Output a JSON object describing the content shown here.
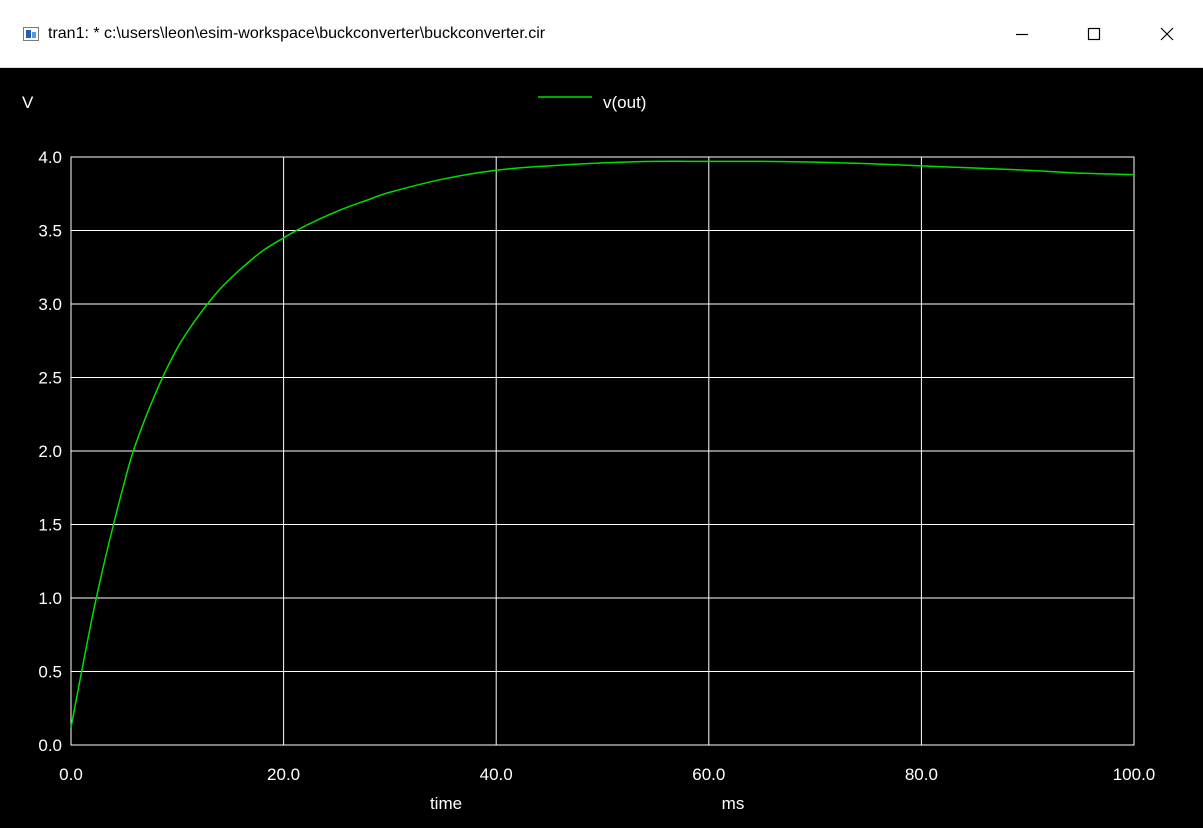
{
  "window": {
    "title": "tran1: * c:\\users\\leon\\esim-workspace\\buckconverter\\buckconverter.cir",
    "icon": "app-icon",
    "controls": [
      "minimize-icon",
      "maximize-icon",
      "close-icon"
    ]
  },
  "colors": {
    "background": "#000000",
    "grid": "#ffffff",
    "trace": "#00dd00"
  },
  "chart_data": {
    "type": "line",
    "ylabel": "V",
    "xlabel": "time",
    "xunit": "ms",
    "xlim": [
      0,
      100
    ],
    "ylim": [
      0,
      4
    ],
    "x_ticks": [
      "0.0",
      "20.0",
      "40.0",
      "60.0",
      "80.0",
      "100.0"
    ],
    "y_ticks": [
      "0.0",
      "0.5",
      "1.0",
      "1.5",
      "2.0",
      "2.5",
      "3.0",
      "3.5",
      "4.0"
    ],
    "x_tick_values": [
      0,
      20,
      40,
      60,
      80,
      100
    ],
    "y_tick_values": [
      0,
      0.5,
      1.0,
      1.5,
      2.0,
      2.5,
      3.0,
      3.5,
      4.0
    ],
    "grid": true,
    "legend_position": "top-center",
    "series": [
      {
        "name": "v(out)",
        "x": [
          0,
          1,
          2,
          3,
          4,
          5,
          6,
          8,
          10,
          12,
          14,
          16,
          18,
          20,
          22,
          25,
          28,
          30,
          35,
          40,
          45,
          50,
          55,
          60,
          65,
          70,
          75,
          80,
          85,
          90,
          95,
          100
        ],
        "y": [
          0.12,
          0.5,
          0.87,
          1.2,
          1.5,
          1.78,
          2.03,
          2.4,
          2.7,
          2.92,
          3.1,
          3.24,
          3.36,
          3.45,
          3.53,
          3.63,
          3.71,
          3.76,
          3.85,
          3.91,
          3.94,
          3.96,
          3.97,
          3.97,
          3.97,
          3.965,
          3.955,
          3.94,
          3.925,
          3.91,
          3.89,
          3.88
        ]
      }
    ]
  }
}
